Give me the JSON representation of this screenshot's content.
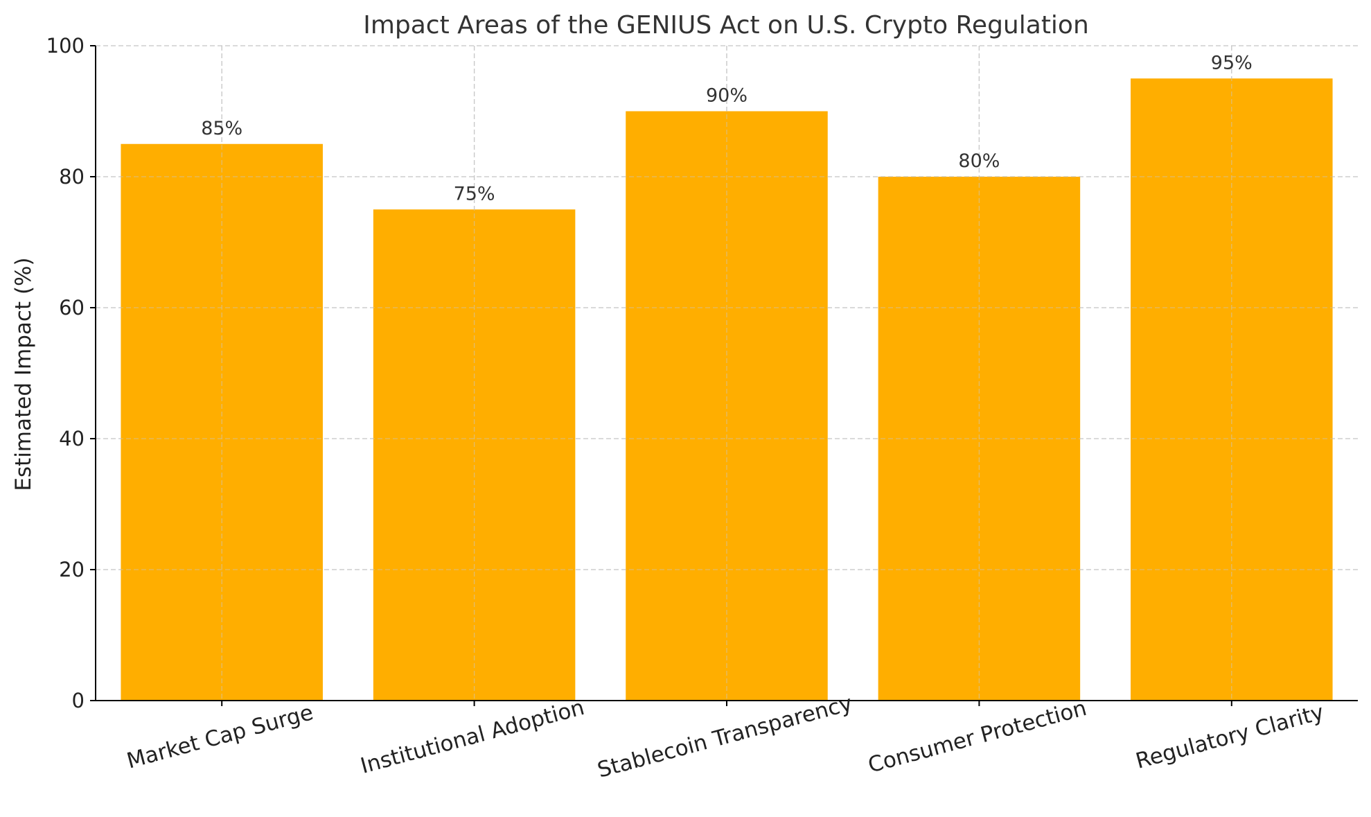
{
  "chart_data": {
    "type": "bar",
    "title": "Impact Areas of the GENIUS Act on U.S. Crypto Regulation",
    "xlabel": "",
    "ylabel": "Estimated Impact (%)",
    "categories": [
      "Market Cap Surge",
      "Institutional Adoption",
      "Stablecoin Transparency",
      "Consumer Protection",
      "Regulatory Clarity"
    ],
    "values": [
      85,
      75,
      90,
      80,
      95
    ],
    "data_labels": [
      "85%",
      "75%",
      "90%",
      "80%",
      "95%"
    ],
    "ylim": [
      0,
      100
    ],
    "yticks": [
      0,
      20,
      40,
      60,
      80,
      100
    ],
    "ytick_labels": [
      "0",
      "20",
      "40",
      "60",
      "80",
      "100"
    ],
    "grid": true,
    "bar_color": "#FFAE00",
    "category_label_rotation_deg": 15
  }
}
